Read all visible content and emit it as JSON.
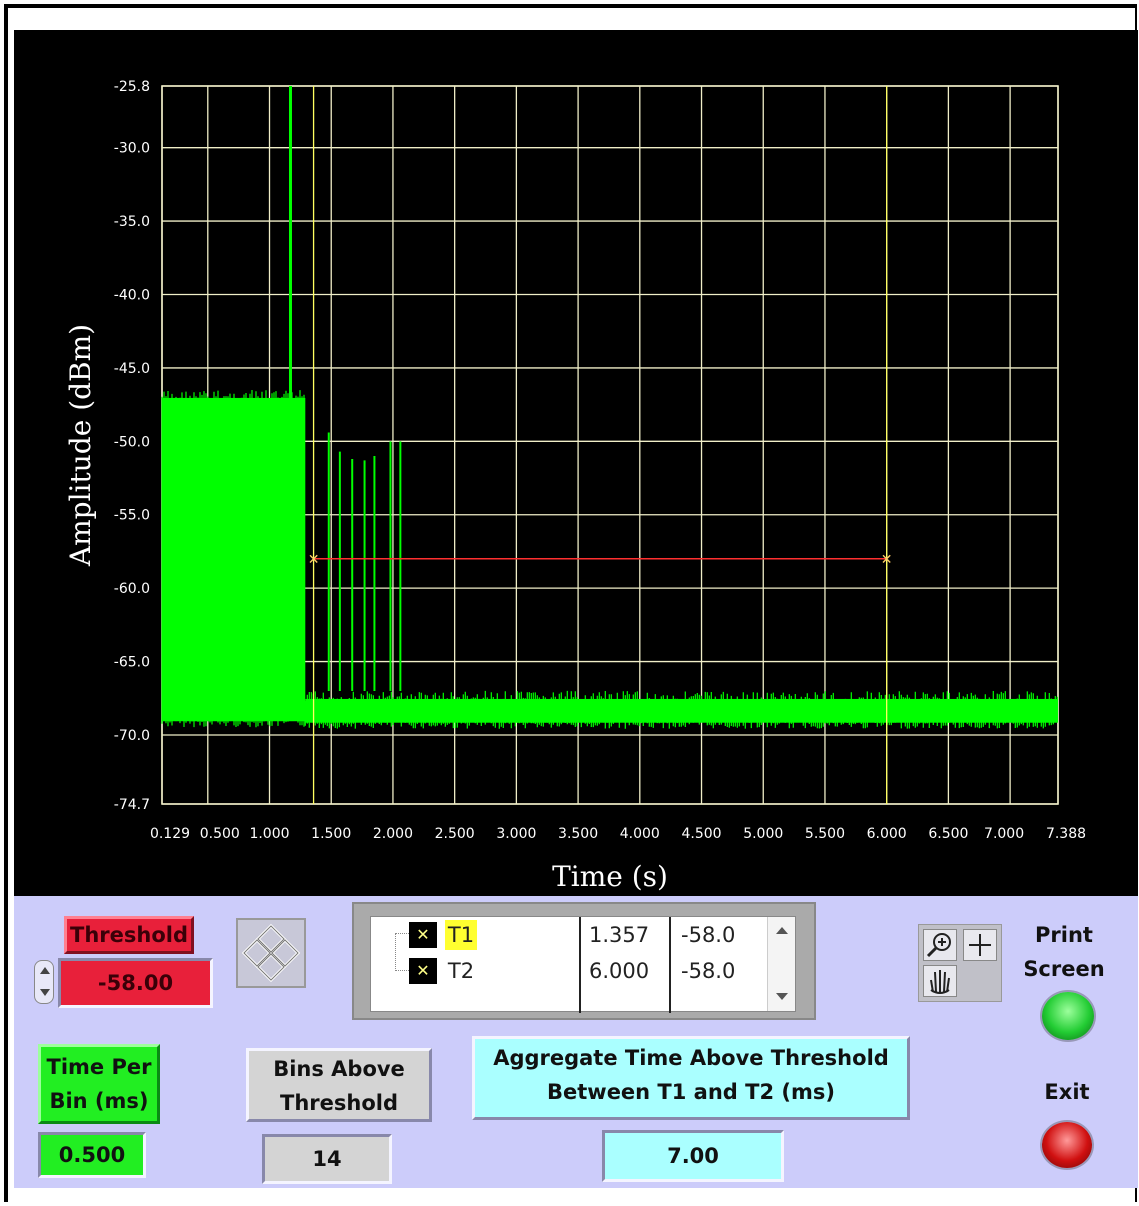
{
  "chart_data": {
    "type": "line",
    "xlabel": "Time (s)",
    "ylabel": "Amplitude (dBm)",
    "xlim": [
      0.129,
      7.388
    ],
    "ylim": [
      -74.7,
      -25.8
    ],
    "x_ticks": [
      "0.129",
      "0.500",
      "1.000",
      "1.500",
      "2.000",
      "2.500",
      "3.000",
      "3.500",
      "4.000",
      "4.500",
      "5.000",
      "5.500",
      "6.000",
      "6.500",
      "7.000",
      "7.388"
    ],
    "x_tick_values": [
      0.129,
      0.5,
      1.0,
      1.5,
      2.0,
      2.5,
      3.0,
      3.5,
      4.0,
      4.5,
      5.0,
      5.5,
      6.0,
      6.5,
      7.0,
      7.388
    ],
    "y_ticks": [
      "-25.8",
      "-30.0",
      "-35.0",
      "-40.0",
      "-45.0",
      "-50.0",
      "-55.0",
      "-60.0",
      "-65.0",
      "-70.0",
      "-74.7"
    ],
    "y_tick_values": [
      -25.8,
      -30.0,
      -35.0,
      -40.0,
      -45.0,
      -50.0,
      -55.0,
      -60.0,
      -65.0,
      -70.0,
      -74.7
    ],
    "grid": true,
    "series": [
      {
        "color": "#00ff00",
        "segments": [
          {
            "x_start": 0.129,
            "x_end": 1.29,
            "y_top": -46.5,
            "y_bottom": -69.2
          },
          {
            "x_start": 1.29,
            "x_end": 7.388,
            "y_top": -67.0,
            "y_bottom": -69.3
          }
        ],
        "spikes": [
          {
            "x": 1.17,
            "y": -25.8
          },
          {
            "x": 1.48,
            "y": -49.4
          },
          {
            "x": 1.57,
            "y": -50.7
          },
          {
            "x": 1.67,
            "y": -51.2
          },
          {
            "x": 1.77,
            "y": -51.3
          },
          {
            "x": 1.85,
            "y": -51.0
          },
          {
            "x": 1.98,
            "y": -50.0
          },
          {
            "x": 2.06,
            "y": -50.0
          }
        ]
      }
    ],
    "threshold_line": {
      "color": "#ff3030",
      "y": -58.0,
      "x_start": 1.357,
      "x_end": 6.0
    },
    "cursors": [
      {
        "name": "T1",
        "x": 1.357,
        "y": -58.0,
        "color": "#ffff60"
      },
      {
        "name": "T2",
        "x": 6.0,
        "y": -58.0,
        "color": "#ffff60"
      }
    ]
  },
  "controls": {
    "threshold_label": "Threshold",
    "threshold_value": "-58.00",
    "time_per_bin_label": "Time Per Bin (ms)",
    "time_per_bin_value": "0.500",
    "bins_above_label": "Bins Above Threshold",
    "bins_above_value": "14",
    "aggregate_label": "Aggregate Time Above Threshold Between T1 and T2 (ms)",
    "aggregate_value": "7.00",
    "print_screen_label": "Print Screen",
    "exit_label": "Exit"
  },
  "cursor_legend": {
    "rows": [
      {
        "name": "T1",
        "x": "1.357",
        "y": "-58.0"
      },
      {
        "name": "T2",
        "x": "6.000",
        "y": "-58.0"
      }
    ]
  },
  "colors": {
    "panel_bg": "#ccccfa",
    "threshold_bg": "#e8203a",
    "green_indicator": "#22ee22",
    "cyan_indicator": "#aaffff",
    "print_led": "#22cc33",
    "exit_led": "#d01010"
  }
}
